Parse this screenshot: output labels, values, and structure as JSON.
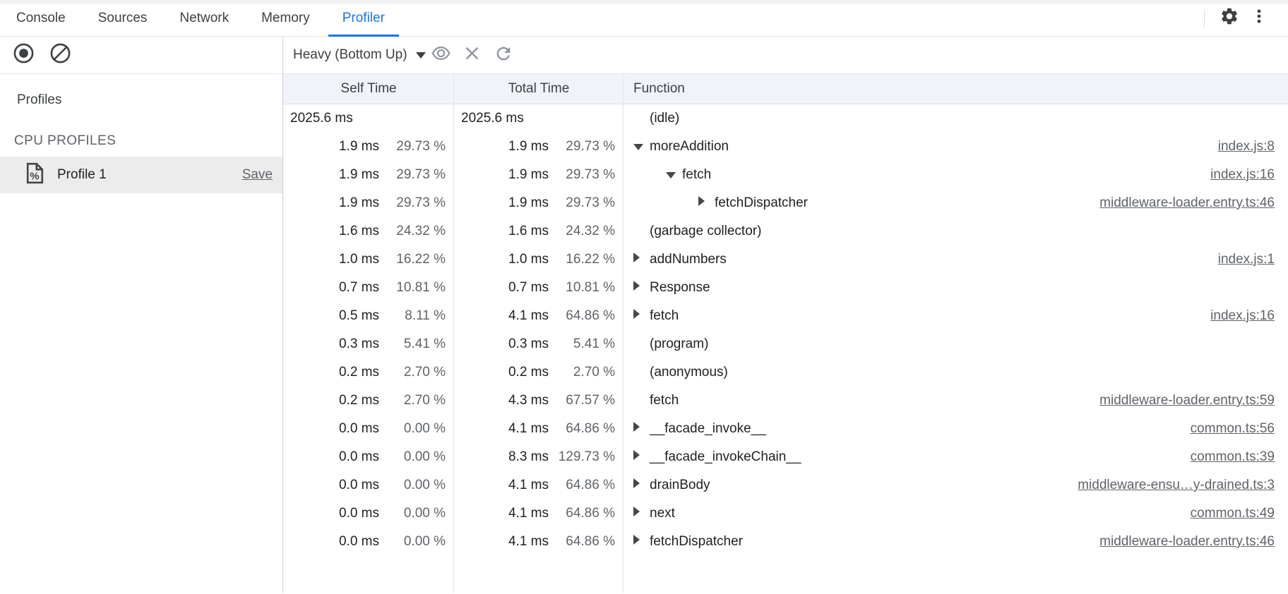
{
  "tabbar": {
    "tabs": [
      {
        "label": "Console"
      },
      {
        "label": "Sources"
      },
      {
        "label": "Network"
      },
      {
        "label": "Memory"
      },
      {
        "label": "Profiler",
        "active": true
      }
    ],
    "icons": [
      "gear-icon",
      "kebab-menu-icon"
    ]
  },
  "sidebar": {
    "record_button": "record-icon",
    "clear_button": "clear-icon",
    "profiles_title": "Profiles",
    "section_label": "CPU PROFILES",
    "profiles": [
      {
        "name": "Profile 1",
        "action_label": "Save",
        "icon": "cpu-profile-document-icon",
        "selected": true
      }
    ]
  },
  "toolbar": {
    "mode_selected": "Heavy (Bottom Up)",
    "icons": [
      "eye-icon",
      "x-icon",
      "refresh-icon"
    ]
  },
  "table": {
    "columns": [
      "Self Time",
      "Total Time",
      "Function"
    ],
    "rows": [
      {
        "self_ms": "2025.6 ms",
        "self_pct": "",
        "total_ms": "2025.6 ms",
        "total_pct": "",
        "fn": "(idle)",
        "level": 0,
        "arrow": "",
        "link": ""
      },
      {
        "self_ms": "1.9 ms",
        "self_pct": "29.73 %",
        "total_ms": "1.9 ms",
        "total_pct": "29.73 %",
        "fn": "moreAddition",
        "level": 0,
        "arrow": "down",
        "link": "index.js:8"
      },
      {
        "self_ms": "1.9 ms",
        "self_pct": "29.73 %",
        "total_ms": "1.9 ms",
        "total_pct": "29.73 %",
        "fn": "fetch",
        "level": 1,
        "arrow": "down",
        "link": "index.js:16"
      },
      {
        "self_ms": "1.9 ms",
        "self_pct": "29.73 %",
        "total_ms": "1.9 ms",
        "total_pct": "29.73 %",
        "fn": "fetchDispatcher",
        "level": 2,
        "arrow": "right",
        "link": "middleware-loader.entry.ts:46"
      },
      {
        "self_ms": "1.6 ms",
        "self_pct": "24.32 %",
        "total_ms": "1.6 ms",
        "total_pct": "24.32 %",
        "fn": "(garbage collector)",
        "level": 0,
        "arrow": "",
        "link": ""
      },
      {
        "self_ms": "1.0 ms",
        "self_pct": "16.22 %",
        "total_ms": "1.0 ms",
        "total_pct": "16.22 %",
        "fn": "addNumbers",
        "level": 0,
        "arrow": "right",
        "link": "index.js:1"
      },
      {
        "self_ms": "0.7 ms",
        "self_pct": "10.81 %",
        "total_ms": "0.7 ms",
        "total_pct": "10.81 %",
        "fn": "Response",
        "level": 0,
        "arrow": "right",
        "link": ""
      },
      {
        "self_ms": "0.5 ms",
        "self_pct": "8.11 %",
        "total_ms": "4.1 ms",
        "total_pct": "64.86 %",
        "fn": "fetch",
        "level": 0,
        "arrow": "right",
        "link": "index.js:16"
      },
      {
        "self_ms": "0.3 ms",
        "self_pct": "5.41 %",
        "total_ms": "0.3 ms",
        "total_pct": "5.41 %",
        "fn": "(program)",
        "level": 0,
        "arrow": "",
        "link": ""
      },
      {
        "self_ms": "0.2 ms",
        "self_pct": "2.70 %",
        "total_ms": "0.2 ms",
        "total_pct": "2.70 %",
        "fn": "(anonymous)",
        "level": 0,
        "arrow": "",
        "link": ""
      },
      {
        "self_ms": "0.2 ms",
        "self_pct": "2.70 %",
        "total_ms": "4.3 ms",
        "total_pct": "67.57 %",
        "fn": "fetch",
        "level": 0,
        "arrow": "",
        "link": "middleware-loader.entry.ts:59"
      },
      {
        "self_ms": "0.0 ms",
        "self_pct": "0.00 %",
        "total_ms": "4.1 ms",
        "total_pct": "64.86 %",
        "fn": "__facade_invoke__",
        "level": 0,
        "arrow": "right",
        "link": "common.ts:56"
      },
      {
        "self_ms": "0.0 ms",
        "self_pct": "0.00 %",
        "total_ms": "8.3 ms",
        "total_pct": "129.73 %",
        "fn": "__facade_invokeChain__",
        "level": 0,
        "arrow": "right",
        "link": "common.ts:39"
      },
      {
        "self_ms": "0.0 ms",
        "self_pct": "0.00 %",
        "total_ms": "4.1 ms",
        "total_pct": "64.86 %",
        "fn": "drainBody",
        "level": 0,
        "arrow": "right",
        "link": "middleware-ensu…y-drained.ts:3"
      },
      {
        "self_ms": "0.0 ms",
        "self_pct": "0.00 %",
        "total_ms": "4.1 ms",
        "total_pct": "64.86 %",
        "fn": "next",
        "level": 0,
        "arrow": "right",
        "link": "common.ts:49"
      },
      {
        "self_ms": "0.0 ms",
        "self_pct": "0.00 %",
        "total_ms": "4.1 ms",
        "total_pct": "64.86 %",
        "fn": "fetchDispatcher",
        "level": 0,
        "arrow": "right",
        "link": "middleware-loader.entry.ts:46"
      }
    ]
  },
  "colors": {
    "accent": "#1a73e8",
    "header_bg": "#f1f3f9",
    "selected_row_bg": "#ececed",
    "link_gray": "#5f6368",
    "text_dark": "#202124",
    "divider": "#dfe4f0"
  }
}
